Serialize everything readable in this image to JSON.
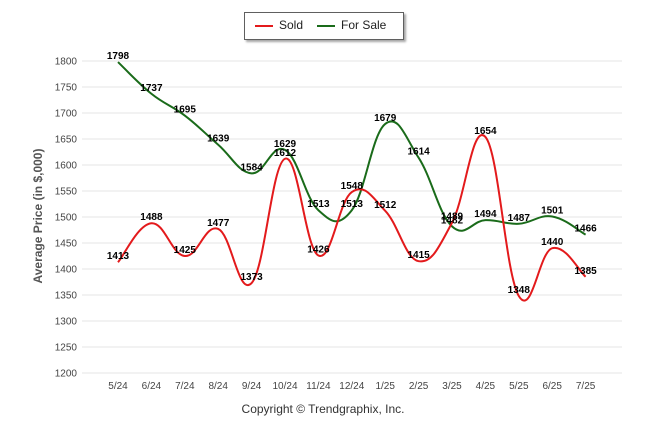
{
  "chart_data": {
    "type": "line",
    "ylabel": "Average Price (in $,000)",
    "xlabel": "",
    "categories": [
      "5/24",
      "6/24",
      "7/24",
      "8/24",
      "9/24",
      "10/24",
      "11/24",
      "12/24",
      "1/25",
      "2/25",
      "3/25",
      "4/25",
      "5/25",
      "6/25",
      "7/25"
    ],
    "ylim": [
      1200,
      1800
    ],
    "yticks": [
      1200,
      1250,
      1300,
      1350,
      1400,
      1450,
      1500,
      1550,
      1600,
      1650,
      1700,
      1750,
      1800
    ],
    "grid": true,
    "legend_placement": "top-center",
    "series": [
      {
        "name": "Sold",
        "color": "#e31a1c",
        "values": [
          1413,
          1488,
          1425,
          1477,
          1373,
          1612,
          1426,
          1548,
          1512,
          1415,
          1489,
          1654,
          1348,
          1440,
          1385
        ]
      },
      {
        "name": "For Sale",
        "color": "#1a6b1a",
        "values": [
          1798,
          1737,
          1695,
          1639,
          1584,
          1629,
          1513,
          1513,
          1679,
          1614,
          1482,
          1494,
          1487,
          1501,
          1466
        ]
      }
    ]
  },
  "footer": {
    "copyright": "Copyright © Trendgraphix, Inc."
  }
}
